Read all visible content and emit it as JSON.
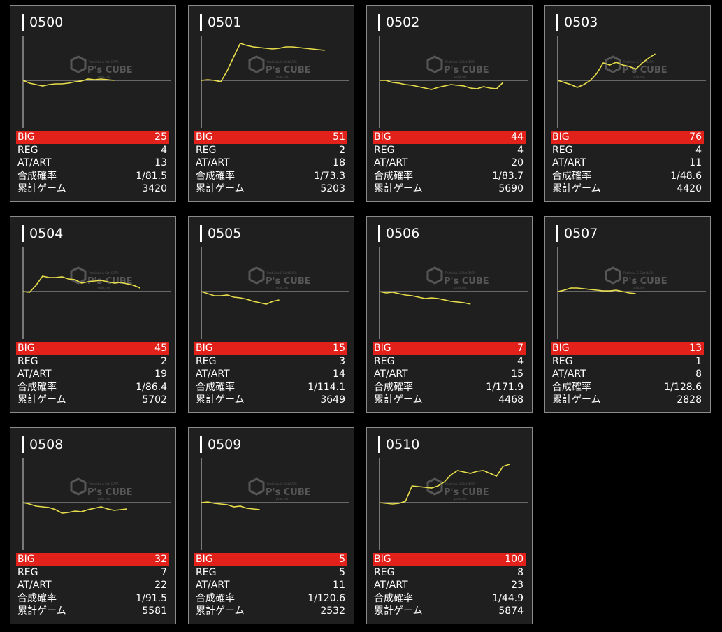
{
  "labels": {
    "big": "BIG",
    "reg": "REG",
    "atart": "AT/ART",
    "prob": "合成確率",
    "games": "累計ゲーム"
  },
  "watermark": {
    "brand": "P's CUBE",
    "line1": "Pachinko & Slot DATA",
    "line2": "pslot.net"
  },
  "colors": {
    "big_bar": "#e3211b",
    "line": "#e8de4a",
    "card_bg": "#1f1f1f",
    "border": "#8a8a8a"
  },
  "machines": [
    {
      "id": "0500",
      "big": "25",
      "reg": "4",
      "atart": "13",
      "prob": "1/81.5",
      "games": "3420",
      "series": [
        0,
        -4,
        -6,
        -8,
        -6,
        -5,
        -5,
        -4,
        -2,
        -1,
        2,
        1,
        2,
        1,
        0
      ]
    },
    {
      "id": "0501",
      "big": "51",
      "reg": "2",
      "atart": "18",
      "prob": "1/73.3",
      "games": "5203",
      "series": [
        0,
        1,
        0,
        -2,
        14,
        34,
        53,
        50,
        48,
        47,
        46,
        45,
        46,
        48,
        48,
        47,
        46,
        45,
        44,
        43
      ]
    },
    {
      "id": "0502",
      "big": "44",
      "reg": "4",
      "atart": "20",
      "prob": "1/83.7",
      "games": "5690",
      "series": [
        0,
        0,
        -3,
        -4,
        -6,
        -7,
        -9,
        -11,
        -13,
        -10,
        -8,
        -6,
        -7,
        -8,
        -11,
        -12,
        -9,
        -11,
        -12,
        -3
      ]
    },
    {
      "id": "0503",
      "big": "76",
      "reg": "4",
      "atart": "11",
      "prob": "1/48.6",
      "games": "4420",
      "series": [
        0,
        -3,
        -6,
        -10,
        -6,
        0,
        10,
        25,
        22,
        26,
        22,
        20,
        16,
        25,
        32,
        38
      ]
    },
    {
      "id": "0504",
      "big": "45",
      "reg": "2",
      "atart": "19",
      "prob": "1/86.4",
      "games": "5702",
      "series": [
        0,
        -1,
        9,
        22,
        20,
        20,
        21,
        18,
        17,
        12,
        14,
        15,
        16,
        14,
        12,
        13,
        11,
        9,
        5
      ]
    },
    {
      "id": "0505",
      "big": "15",
      "reg": "3",
      "atart": "14",
      "prob": "1/114.1",
      "games": "3649",
      "series": [
        0,
        -3,
        -6,
        -6,
        -5,
        -8,
        -9,
        -11,
        -14,
        -16,
        -18,
        -14,
        -12
      ]
    },
    {
      "id": "0506",
      "big": "7",
      "reg": "4",
      "atart": "15",
      "prob": "1/171.9",
      "games": "4468",
      "series": [
        0,
        -2,
        -1,
        -3,
        -5,
        -6,
        -8,
        -10,
        -9,
        -10,
        -12,
        -14,
        -15,
        -16,
        -18
      ]
    },
    {
      "id": "0507",
      "big": "13",
      "reg": "1",
      "atart": "8",
      "prob": "1/128.6",
      "games": "2828",
      "series": [
        0,
        2,
        5,
        5,
        4,
        3,
        2,
        1,
        1,
        2,
        0,
        -2,
        -3
      ]
    },
    {
      "id": "0508",
      "big": "32",
      "reg": "7",
      "atart": "22",
      "prob": "1/91.5",
      "games": "5581",
      "series": [
        0,
        -2,
        -5,
        -6,
        -7,
        -10,
        -15,
        -14,
        -12,
        -13,
        -10,
        -8,
        -6,
        -9,
        -11,
        -10,
        -9
      ]
    },
    {
      "id": "0509",
      "big": "5",
      "reg": "5",
      "atart": "11",
      "prob": "1/120.6",
      "games": "2532",
      "series": [
        0,
        1,
        -1,
        -2,
        -3,
        -6,
        -5,
        -8,
        -9,
        -10
      ]
    },
    {
      "id": "0510",
      "big": "100",
      "reg": "8",
      "atart": "23",
      "prob": "1/44.9",
      "games": "5874",
      "series": [
        0,
        -1,
        -2,
        -1,
        2,
        24,
        23,
        22,
        21,
        24,
        30,
        40,
        46,
        44,
        42,
        45,
        46,
        42,
        38,
        52,
        55
      ]
    }
  ]
}
